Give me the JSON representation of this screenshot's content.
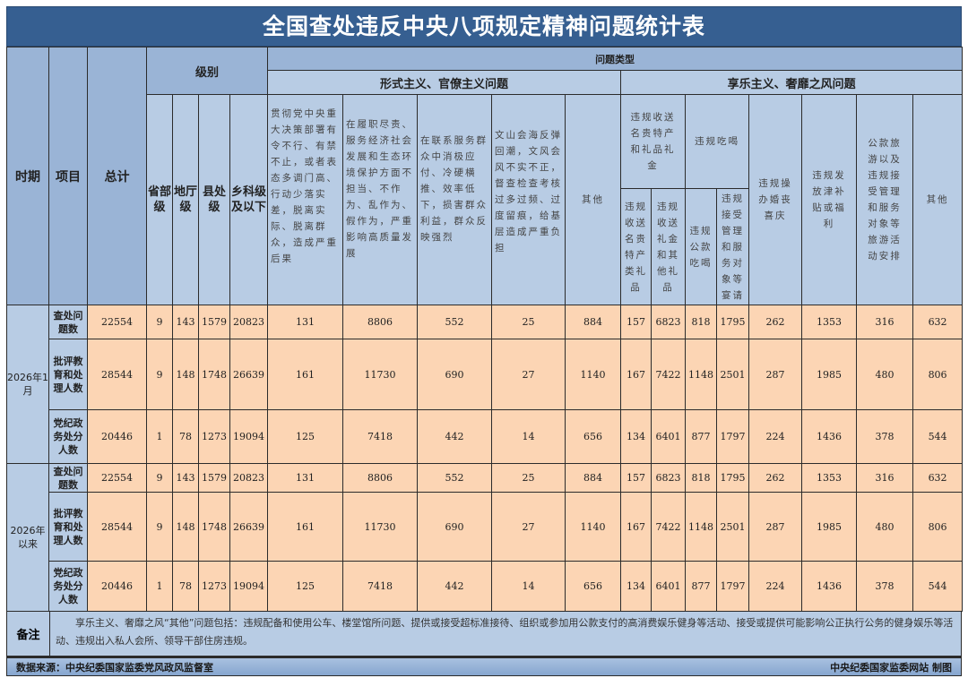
{
  "title": "全国查处违反中央八项规定精神问题统计表",
  "header": {
    "period": "时期",
    "item": "项目",
    "total": "总计",
    "level_group": "级别",
    "levels": [
      "省部级",
      "地厅级",
      "县处级",
      "乡科级及以下"
    ],
    "problem_type": "问题类型",
    "formalism_group": "形式主义、官僚主义问题",
    "hedonism_group": "享乐主义、奢靡之风问题",
    "formalism_cols": [
      "贯彻党中央重大决策部署有令不行、有禁不止，或者表态多调门高、行动少落实差，脱离实际、脱离群众，造成严重后果",
      "在履职尽责、服务经济社会发展和生态环境保护方面不担当、不作为、乱作为、假作为，严重影响高质量发展",
      "在联系服务群众中消极应付、冷硬横推、效率低下，损害群众利益，群众反映强烈",
      "文山会海反弹回潮，文风会风不实不正，督查检查考核过多过频、过度留痕，给基层造成严重负担",
      "其他"
    ],
    "gift_group": "违规收送名贵特产和礼品礼金",
    "gift_cols": [
      "违规收送名贵特产类礼品",
      "违规收送礼金和其他礼品"
    ],
    "dining_group": "违规吃喝",
    "dining_cols": [
      "违规公款吃喝",
      "违规接受管理和服务对象等宴请"
    ],
    "hedonism_cols": [
      "违规操办婚丧喜庆",
      "违规发放津补贴或福利",
      "公款旅游以及违规接受管理和服务对象等旅游活动安排",
      "其他"
    ]
  },
  "periods": [
    {
      "label": "2026年1月",
      "rows": [
        {
          "item": "查处问题数",
          "values": [
            "22554",
            "9",
            "143",
            "1579",
            "20823",
            "131",
            "8806",
            "552",
            "25",
            "884",
            "157",
            "6823",
            "818",
            "1795",
            "262",
            "1353",
            "316",
            "632"
          ]
        },
        {
          "item": "批评教育和处理人数",
          "values": [
            "28544",
            "9",
            "148",
            "1748",
            "26639",
            "161",
            "11730",
            "690",
            "27",
            "1140",
            "167",
            "7422",
            "1148",
            "2501",
            "287",
            "1985",
            "480",
            "806"
          ]
        },
        {
          "item": "党纪政务处分人数",
          "values": [
            "20446",
            "1",
            "78",
            "1273",
            "19094",
            "125",
            "7418",
            "442",
            "14",
            "656",
            "134",
            "6401",
            "877",
            "1797",
            "224",
            "1436",
            "378",
            "544"
          ]
        }
      ]
    },
    {
      "label": "2026年以来",
      "rows": [
        {
          "item": "查处问题数",
          "values": [
            "22554",
            "9",
            "143",
            "1579",
            "20823",
            "131",
            "8806",
            "552",
            "25",
            "884",
            "157",
            "6823",
            "818",
            "1795",
            "262",
            "1353",
            "316",
            "632"
          ]
        },
        {
          "item": "批评教育和处理人数",
          "values": [
            "28544",
            "9",
            "148",
            "1748",
            "26639",
            "161",
            "11730",
            "690",
            "27",
            "1140",
            "167",
            "7422",
            "1148",
            "2501",
            "287",
            "1985",
            "480",
            "806"
          ]
        },
        {
          "item": "党纪政务处分人数",
          "values": [
            "20446",
            "1",
            "78",
            "1273",
            "19094",
            "125",
            "7418",
            "442",
            "14",
            "656",
            "134",
            "6401",
            "877",
            "1797",
            "224",
            "1436",
            "378",
            "544"
          ]
        }
      ]
    }
  ],
  "note": {
    "label": "备注",
    "text": "享乐主义、奢靡之风“其他”问题包括：违规配备和使用公车、楼堂馆所问题、提供或接受超标准接待、组织或参加用公款支付的高消费娱乐健身等活动、接受或提供可能影响公正执行公务的健身娱乐等活动、违规出入私人会所、领导干部住房违规。"
  },
  "footer": {
    "source": "数据来源：中央纪委国家监委党风政风监督室",
    "credit": "中央纪委国家监委网站 制图"
  },
  "colors": {
    "title_bg": "#365f91",
    "header_bg": "#b8cce4",
    "cell_bg": "#fcd5b4"
  }
}
